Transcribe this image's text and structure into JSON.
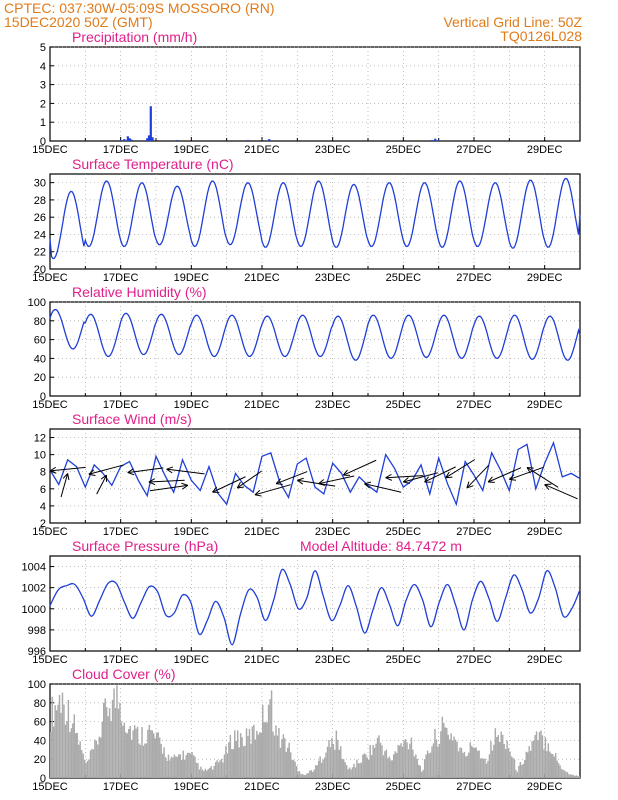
{
  "header": {
    "line1": "CPTEC:   037:30W-05:09S   MOSSORO (RN)",
    "line2": "15DEC2020  50Z  (GMT)",
    "right1": "Vertical Grid Line: 50Z",
    "right2": "TQ0126L028"
  },
  "colors": {
    "header": "#e07b1a",
    "title": "#e0208a",
    "line": "#1f3fd8",
    "bar": "#1f3fd8",
    "cloud": "#aaaaaa",
    "arrow": "#000000",
    "grid": "#9a9a9a"
  },
  "chart_data": [
    {
      "type": "bar",
      "title": "Precipitation (mm/h)",
      "ylim": [
        0,
        5
      ],
      "yticks": [
        "0",
        "1",
        "2",
        "3",
        "4",
        "5"
      ],
      "xticks": [
        "15DEC",
        "17DEC",
        "19DEC",
        "21DEC",
        "23DEC",
        "25DEC",
        "27DEC",
        "29DEC"
      ],
      "xrange_days": [
        15,
        30
      ],
      "points": [
        [
          17.0,
          0.05
        ],
        [
          17.1,
          0.1
        ],
        [
          17.2,
          0.25
        ],
        [
          17.25,
          0.15
        ],
        [
          17.3,
          0.08
        ],
        [
          17.75,
          0.15
        ],
        [
          17.8,
          0.3
        ],
        [
          17.85,
          1.85
        ],
        [
          17.9,
          0.2
        ],
        [
          18.6,
          0.05
        ],
        [
          20.6,
          0.05
        ],
        [
          21.2,
          0.1
        ],
        [
          25.8,
          0.05
        ],
        [
          25.9,
          0.12
        ],
        [
          26.0,
          0.05
        ]
      ]
    },
    {
      "type": "line",
      "title": "Surface Temperature (nC)",
      "ylim": [
        20,
        31
      ],
      "yticks": [
        "20",
        "22",
        "24",
        "26",
        "28",
        "30"
      ],
      "xticks": [
        "15DEC",
        "17DEC",
        "19DEC",
        "21DEC",
        "23DEC",
        "25DEC",
        "27DEC",
        "29DEC"
      ],
      "xrange_days": [
        15,
        30
      ],
      "daily_max": [
        29.0,
        30.2,
        30.0,
        29.6,
        30.2,
        30.0,
        30.0,
        30.2,
        29.8,
        30.0,
        30.0,
        30.2,
        30.0,
        30.3,
        30.5
      ],
      "daily_min": [
        21.2,
        22.6,
        22.6,
        22.8,
        22.6,
        22.8,
        22.5,
        22.6,
        22.5,
        22.6,
        22.6,
        22.5,
        22.6,
        22.4,
        22.5
      ],
      "start": 23.5,
      "end": 26.3
    },
    {
      "type": "line",
      "title": "Relative Humidity (%)",
      "ylim": [
        0,
        100
      ],
      "yticks": [
        "0",
        "20",
        "40",
        "60",
        "80",
        "100"
      ],
      "xticks": [
        "15DEC",
        "17DEC",
        "19DEC",
        "21DEC",
        "23DEC",
        "25DEC",
        "27DEC",
        "29DEC"
      ],
      "xrange_days": [
        15,
        30
      ],
      "daily_max": [
        92,
        87,
        88,
        87,
        86,
        86,
        85,
        86,
        85,
        86,
        86,
        86,
        85,
        86,
        85
      ],
      "daily_min": [
        50,
        42,
        44,
        44,
        42,
        42,
        42,
        42,
        38,
        40,
        41,
        40,
        40,
        39,
        38
      ],
      "start": 83,
      "end": 65
    },
    {
      "type": "line",
      "title": "Surface Wind (m/s)",
      "ylim": [
        2,
        13
      ],
      "yticks": [
        "2",
        "4",
        "6",
        "8",
        "10",
        "12"
      ],
      "xticks": [
        "15DEC",
        "17DEC",
        "19DEC",
        "21DEC",
        "23DEC",
        "25DEC",
        "27DEC",
        "29DEC"
      ],
      "xrange_days": [
        15,
        30
      ],
      "speed": [
        8.2,
        6.5,
        9.4,
        8.6,
        6.2,
        8.8,
        7.8,
        6.4,
        8.6,
        9.2,
        7.0,
        5.2,
        9.8,
        7.6,
        5.6,
        9.4,
        7.0,
        5.8,
        8.6,
        5.5,
        4.2,
        7.8,
        6.4,
        5.6,
        9.8,
        10.2,
        6.8,
        5.0,
        8.9,
        9.6,
        6.2,
        5.4,
        9.0,
        7.8,
        5.6,
        7.4,
        6.4,
        5.6,
        10.0,
        8.4,
        6.2,
        7.0,
        8.8,
        5.4,
        9.6,
        6.6,
        4.2,
        9.2,
        7.6,
        5.8,
        10.2,
        8.2,
        5.8,
        10.6,
        11.2,
        6.0,
        9.0,
        11.4,
        7.4,
        7.8,
        7.2
      ],
      "arrows": [
        [
          15.0,
          8.1,
          20,
          -0.5
        ],
        [
          15.5,
          7.8,
          260,
          -0.8
        ],
        [
          16.1,
          7.7,
          25,
          0.2
        ],
        [
          16.6,
          7.6,
          255,
          -0.1
        ],
        [
          17.2,
          7.9,
          20,
          -0.3
        ],
        [
          17.8,
          6.8,
          20,
          -0.8
        ],
        [
          18.3,
          8.3,
          -5,
          -0.5
        ],
        [
          18.9,
          6.4,
          180,
          -0.9
        ],
        [
          19.6,
          5.6,
          30,
          1.0
        ],
        [
          20.3,
          6.1,
          50,
          0.4
        ],
        [
          20.8,
          5.3,
          20,
          0.6
        ],
        [
          21.4,
          6.6,
          35,
          0.2
        ],
        [
          22.0,
          7.0,
          -5,
          -0.7
        ],
        [
          22.6,
          6.6,
          20,
          0.2
        ],
        [
          23.3,
          7.6,
          30,
          0.9
        ],
        [
          23.9,
          6.6,
          -15,
          -0.6
        ],
        [
          24.5,
          7.3,
          10,
          -0.2
        ],
        [
          25.0,
          6.8,
          25,
          0.2
        ],
        [
          25.6,
          6.8,
          35,
          0.7
        ],
        [
          26.2,
          7.3,
          40,
          1.0
        ],
        [
          26.8,
          6.1,
          55,
          1.2
        ],
        [
          27.4,
          6.8,
          30,
          0.8
        ],
        [
          28.0,
          7.1,
          25,
          0.7
        ],
        [
          28.5,
          8.5,
          -35,
          -1.5
        ],
        [
          29.0,
          6.5,
          -30,
          -0.8
        ]
      ],
      "arrows_note": ""
    },
    {
      "type": "line",
      "title": "Surface Pressure (hPa)",
      "annotation": "Model Altitude: 84.7472  m",
      "ylim": [
        996,
        1005
      ],
      "yticks": [
        "996",
        "998",
        "1000",
        "1002",
        "1004"
      ],
      "xticks": [
        "15DEC",
        "17DEC",
        "19DEC",
        "21DEC",
        "23DEC",
        "25DEC",
        "27DEC",
        "29DEC"
      ],
      "xrange_days": [
        15,
        30
      ],
      "values": [
        1000.3,
        1001.8,
        1002.2,
        1002.3,
        1001.0,
        999.3,
        1000.8,
        1002.4,
        1002.4,
        1000.6,
        999.1,
        1000.6,
        1002.1,
        1001.6,
        999.4,
        999.6,
        1001.3,
        1000.6,
        997.6,
        998.9,
        1000.7,
        999.2,
        996.6,
        999.5,
        1001.8,
        1001.1,
        998.9,
        1000.8,
        1003.7,
        1002.3,
        1000.0,
        1001.0,
        1003.6,
        1001.2,
        998.9,
        1000.3,
        1002.2,
        1000.2,
        997.7,
        999.9,
        1002.0,
        1000.4,
        998.4,
        1000.8,
        1002.3,
        1000.8,
        998.3,
        1000.6,
        1002.3,
        1000.3,
        998.0,
        1000.8,
        1002.6,
        1001.0,
        998.8,
        1001.0,
        1003.2,
        1001.8,
        999.6,
        1001.0,
        1003.6,
        1002.0,
        999.3,
        1000.0,
        1001.8
      ]
    },
    {
      "type": "bar",
      "title": "Cloud Cover (%)",
      "ylim": [
        0,
        100
      ],
      "yticks": [
        "0",
        "20",
        "40",
        "60",
        "80",
        "100"
      ],
      "xticks": [
        "15DEC",
        "17DEC",
        "19DEC",
        "21DEC",
        "23DEC",
        "25DEC",
        "27DEC",
        "29DEC"
      ],
      "xrange_days": [
        15,
        30
      ],
      "profile": [
        [
          15.0,
          75
        ],
        [
          15.3,
          95
        ],
        [
          15.6,
          70
        ],
        [
          16.0,
          15
        ],
        [
          16.3,
          40
        ],
        [
          16.6,
          85
        ],
        [
          16.9,
          95
        ],
        [
          17.2,
          60
        ],
        [
          17.5,
          50
        ],
        [
          17.8,
          55
        ],
        [
          18.1,
          40
        ],
        [
          18.4,
          20
        ],
        [
          18.7,
          28
        ],
        [
          19.0,
          25
        ],
        [
          19.3,
          8
        ],
        [
          19.6,
          12
        ],
        [
          19.9,
          25
        ],
        [
          20.2,
          50
        ],
        [
          20.5,
          45
        ],
        [
          20.8,
          55
        ],
        [
          21.0,
          70
        ],
        [
          21.2,
          96
        ],
        [
          21.4,
          50
        ],
        [
          21.6,
          45
        ],
        [
          21.8,
          30
        ],
        [
          22.0,
          8
        ],
        [
          22.2,
          4
        ],
        [
          22.5,
          12
        ],
        [
          22.8,
          35
        ],
        [
          23.1,
          45
        ],
        [
          23.4,
          10
        ],
        [
          23.7,
          18
        ],
        [
          24.0,
          30
        ],
        [
          24.3,
          45
        ],
        [
          24.6,
          20
        ],
        [
          24.9,
          38
        ],
        [
          25.2,
          45
        ],
        [
          25.5,
          8
        ],
        [
          25.8,
          42
        ],
        [
          26.1,
          58
        ],
        [
          26.4,
          50
        ],
        [
          26.7,
          25
        ],
        [
          27.0,
          42
        ],
        [
          27.3,
          20
        ],
        [
          27.6,
          50
        ],
        [
          27.9,
          45
        ],
        [
          28.2,
          8
        ],
        [
          28.5,
          32
        ],
        [
          28.8,
          48
        ],
        [
          29.1,
          42
        ],
        [
          29.4,
          15
        ],
        [
          29.7,
          4
        ],
        [
          30.0,
          2
        ]
      ]
    }
  ]
}
